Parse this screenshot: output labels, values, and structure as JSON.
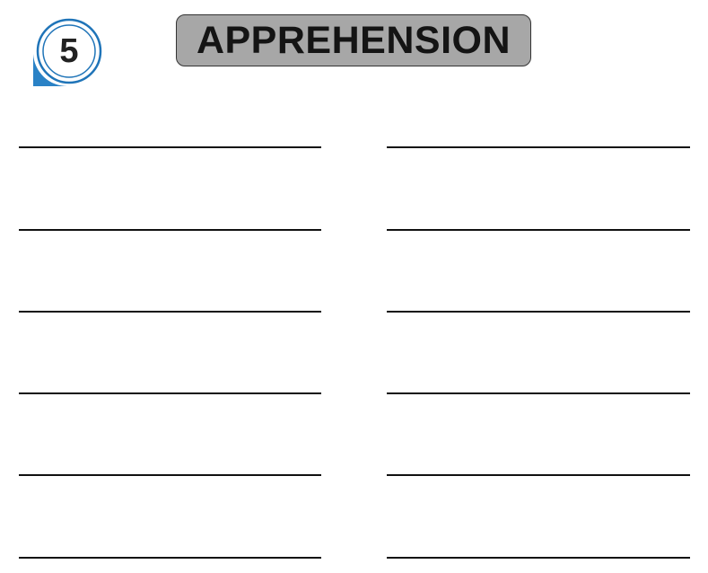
{
  "badge": {
    "number": "5",
    "ring_color": "#1f74b8",
    "accent_color": "#2a82c6"
  },
  "header": {
    "title": "APPREHENSION",
    "pill_color": "#a7a7a7"
  },
  "answer_lines": {
    "left_column_count": 6,
    "right_column_count": 6,
    "line_color": "#111111"
  }
}
